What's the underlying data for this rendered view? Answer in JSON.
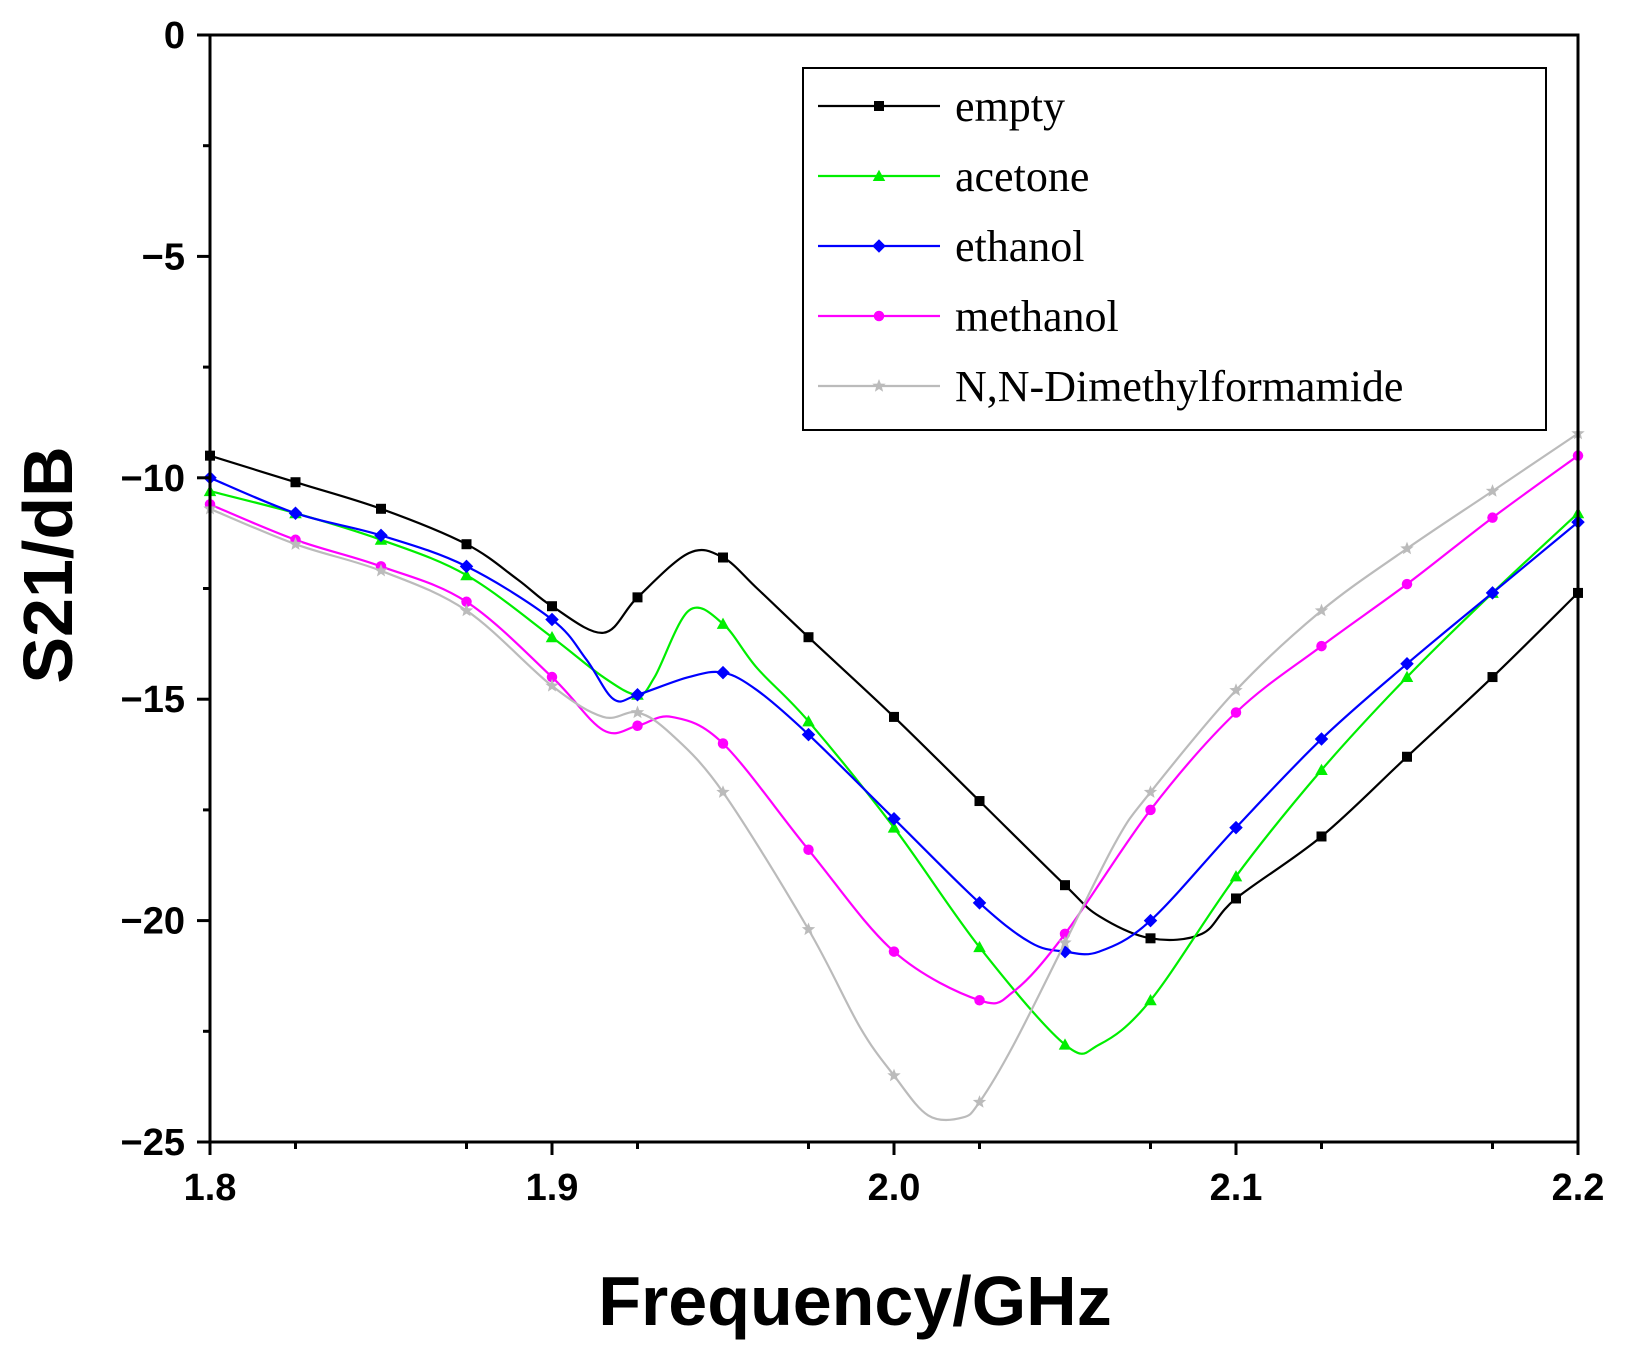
{
  "chart_data": {
    "type": "line",
    "title": "",
    "xlabel": "Frequency/GHz",
    "ylabel": "S21/dB",
    "xlim": [
      1.8,
      2.2
    ],
    "ylim": [
      -25,
      0
    ],
    "xticks": [
      "1.8",
      "1.9",
      "2.0",
      "2.1",
      "2.2"
    ],
    "yticks": [
      "0",
      "−5",
      "−10",
      "−15",
      "−20",
      "−25"
    ],
    "grid": false,
    "legend_position": "top-right",
    "x": [
      1.8,
      1.825,
      1.85,
      1.875,
      1.9,
      1.925,
      1.95,
      1.975,
      2.0,
      2.025,
      2.05,
      2.075,
      2.1,
      2.125,
      2.15,
      2.175,
      2.2
    ],
    "series": [
      {
        "name": "empty",
        "color": "#000000",
        "marker": "square",
        "values": [
          -9.5,
          -10.1,
          -10.7,
          -11.5,
          -12.9,
          -12.7,
          -11.8,
          -13.6,
          -15.4,
          -17.3,
          -19.2,
          -20.4,
          -19.5,
          -18.1,
          -16.3,
          -14.5,
          -12.6
        ],
        "curve": [
          [
            1.8,
            -9.5
          ],
          [
            1.825,
            -10.1
          ],
          [
            1.85,
            -10.7
          ],
          [
            1.875,
            -11.5
          ],
          [
            1.89,
            -12.3
          ],
          [
            1.9,
            -12.9
          ],
          [
            1.915,
            -13.5
          ],
          [
            1.925,
            -12.7
          ],
          [
            1.94,
            -11.7
          ],
          [
            1.95,
            -11.8
          ],
          [
            1.96,
            -12.5
          ],
          [
            1.975,
            -13.6
          ],
          [
            2.0,
            -15.4
          ],
          [
            2.025,
            -17.3
          ],
          [
            2.05,
            -19.2
          ],
          [
            2.06,
            -19.9
          ],
          [
            2.075,
            -20.4
          ],
          [
            2.09,
            -20.3
          ],
          [
            2.1,
            -19.5
          ],
          [
            2.125,
            -18.1
          ],
          [
            2.15,
            -16.3
          ],
          [
            2.175,
            -14.5
          ],
          [
            2.2,
            -12.6
          ]
        ]
      },
      {
        "name": "acetone",
        "color": "#00ee00",
        "marker": "triangle",
        "values": [
          -10.3,
          -10.8,
          -11.4,
          -12.2,
          -13.6,
          -14.9,
          -13.3,
          -15.5,
          -17.9,
          -20.6,
          -22.8,
          -21.8,
          -19.0,
          -16.6,
          -14.5,
          -12.6,
          -10.8
        ],
        "curve": [
          [
            1.8,
            -10.3
          ],
          [
            1.825,
            -10.8
          ],
          [
            1.85,
            -11.4
          ],
          [
            1.875,
            -12.2
          ],
          [
            1.9,
            -13.6
          ],
          [
            1.915,
            -14.5
          ],
          [
            1.925,
            -14.9
          ],
          [
            1.93,
            -14.5
          ],
          [
            1.94,
            -13.0
          ],
          [
            1.95,
            -13.3
          ],
          [
            1.96,
            -14.3
          ],
          [
            1.975,
            -15.5
          ],
          [
            2.0,
            -17.9
          ],
          [
            2.025,
            -20.6
          ],
          [
            2.05,
            -22.8
          ],
          [
            2.06,
            -22.8
          ],
          [
            2.075,
            -21.8
          ],
          [
            2.1,
            -19.0
          ],
          [
            2.125,
            -16.6
          ],
          [
            2.15,
            -14.5
          ],
          [
            2.175,
            -12.6
          ],
          [
            2.2,
            -10.8
          ]
        ]
      },
      {
        "name": "ethanol",
        "color": "#0000ff",
        "marker": "diamond",
        "values": [
          -10.0,
          -10.8,
          -11.3,
          -12.0,
          -13.2,
          -14.9,
          -14.4,
          -15.8,
          -17.7,
          -19.6,
          -20.7,
          -20.0,
          -17.9,
          -15.9,
          -14.2,
          -12.6,
          -11.0
        ],
        "curve": [
          [
            1.8,
            -10.0
          ],
          [
            1.825,
            -10.8
          ],
          [
            1.85,
            -11.3
          ],
          [
            1.875,
            -12.0
          ],
          [
            1.9,
            -13.2
          ],
          [
            1.91,
            -14.1
          ],
          [
            1.918,
            -15.0
          ],
          [
            1.925,
            -14.9
          ],
          [
            1.94,
            -14.5
          ],
          [
            1.95,
            -14.4
          ],
          [
            1.96,
            -14.8
          ],
          [
            1.975,
            -15.8
          ],
          [
            2.0,
            -17.7
          ],
          [
            2.025,
            -19.6
          ],
          [
            2.04,
            -20.5
          ],
          [
            2.05,
            -20.7
          ],
          [
            2.06,
            -20.7
          ],
          [
            2.075,
            -20.0
          ],
          [
            2.1,
            -17.9
          ],
          [
            2.125,
            -15.9
          ],
          [
            2.15,
            -14.2
          ],
          [
            2.175,
            -12.6
          ],
          [
            2.2,
            -11.0
          ]
        ]
      },
      {
        "name": "methanol",
        "color": "#ff00ff",
        "marker": "circle",
        "values": [
          -10.6,
          -11.4,
          -12.0,
          -12.8,
          -14.5,
          -15.6,
          -16.0,
          -18.4,
          -20.7,
          -21.8,
          -20.3,
          -17.5,
          -15.3,
          -13.8,
          -12.4,
          -10.9,
          -9.5
        ],
        "curve": [
          [
            1.8,
            -10.6
          ],
          [
            1.825,
            -11.4
          ],
          [
            1.85,
            -12.0
          ],
          [
            1.875,
            -12.8
          ],
          [
            1.9,
            -14.5
          ],
          [
            1.915,
            -15.7
          ],
          [
            1.925,
            -15.6
          ],
          [
            1.935,
            -15.4
          ],
          [
            1.95,
            -16.0
          ],
          [
            1.975,
            -18.4
          ],
          [
            2.0,
            -20.7
          ],
          [
            2.025,
            -21.8
          ],
          [
            2.035,
            -21.6
          ],
          [
            2.05,
            -20.3
          ],
          [
            2.075,
            -17.5
          ],
          [
            2.1,
            -15.3
          ],
          [
            2.125,
            -13.8
          ],
          [
            2.15,
            -12.4
          ],
          [
            2.175,
            -10.9
          ],
          [
            2.2,
            -9.5
          ]
        ]
      },
      {
        "name": "N,N-Dimethylformamide",
        "color": "#bbbbbb",
        "marker": "star",
        "values": [
          -10.7,
          -11.5,
          -12.1,
          -13.0,
          -14.7,
          -15.3,
          -17.1,
          -20.2,
          -23.5,
          -24.1,
          -20.5,
          -17.1,
          -14.8,
          -13.0,
          -11.6,
          -10.3,
          -9.0
        ],
        "curve": [
          [
            1.8,
            -10.7
          ],
          [
            1.825,
            -11.5
          ],
          [
            1.85,
            -12.1
          ],
          [
            1.875,
            -13.0
          ],
          [
            1.9,
            -14.7
          ],
          [
            1.915,
            -15.4
          ],
          [
            1.925,
            -15.3
          ],
          [
            1.935,
            -15.8
          ],
          [
            1.95,
            -17.1
          ],
          [
            1.975,
            -20.2
          ],
          [
            1.99,
            -22.4
          ],
          [
            2.0,
            -23.5
          ],
          [
            2.01,
            -24.4
          ],
          [
            2.02,
            -24.45
          ],
          [
            2.025,
            -24.1
          ],
          [
            2.035,
            -22.8
          ],
          [
            2.05,
            -20.5
          ],
          [
            2.065,
            -18.2
          ],
          [
            2.075,
            -17.1
          ],
          [
            2.1,
            -14.8
          ],
          [
            2.125,
            -13.0
          ],
          [
            2.15,
            -11.6
          ],
          [
            2.175,
            -10.3
          ],
          [
            2.2,
            -9.0
          ]
        ]
      }
    ]
  }
}
